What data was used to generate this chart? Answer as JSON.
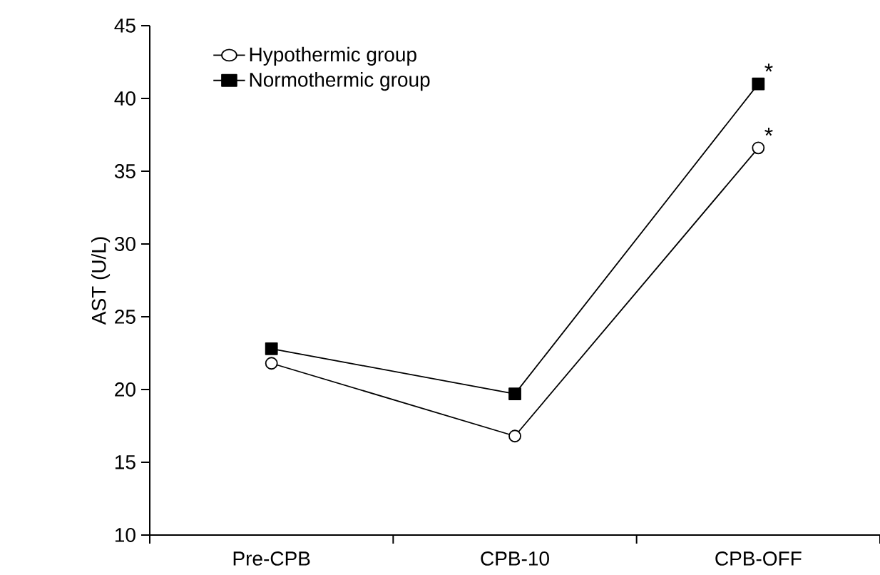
{
  "chart_data": {
    "type": "line",
    "ylabel": "AST (U/L)",
    "categories": [
      "Pre-CPB",
      "CPB-10",
      "CPB-OFF"
    ],
    "series": [
      {
        "name": "Hypothermic group",
        "color": "#000000",
        "marker": "circle",
        "values": [
          21.8,
          16.8,
          36.6
        ]
      },
      {
        "name": "Normothermic group",
        "color": "#000000",
        "marker": "square",
        "values": [
          22.8,
          19.7,
          41.0
        ]
      }
    ],
    "ylim": [
      10,
      45
    ],
    "yticks": [
      10,
      15,
      20,
      25,
      30,
      35,
      40,
      45
    ],
    "legend": "top left",
    "grid": false,
    "annotations": [
      {
        "text": "*",
        "x": "CPB-OFF",
        "y": 41.0
      },
      {
        "text": "*",
        "x": "CPB-OFF",
        "y": 36.6
      }
    ]
  }
}
